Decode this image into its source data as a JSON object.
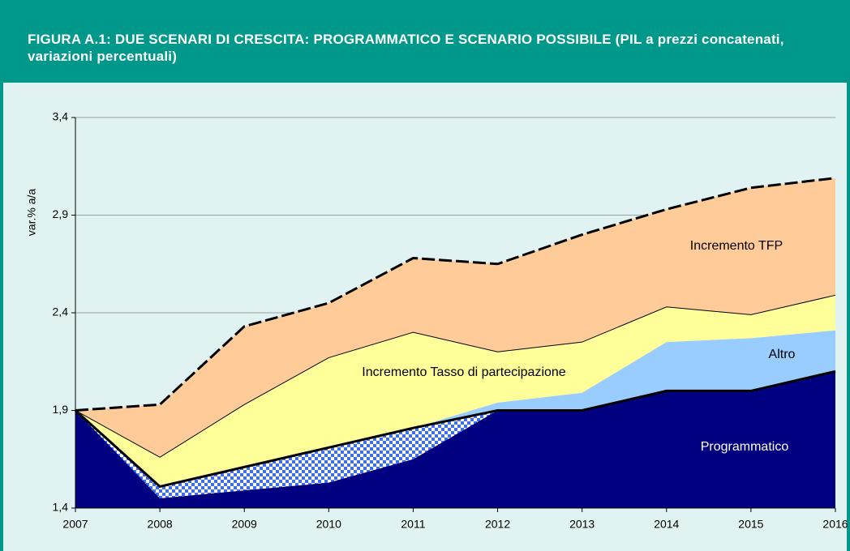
{
  "chart_data": {
    "type": "stacked_area",
    "title": "FIGURA A.1: DUE SCENARI DI CRESCITA: PROGRAMMATICO E SCENARIO POSSIBILE (PIL a prezzi concatenati, variazioni percentuali)",
    "y_label": "var.% a/a",
    "categories": [
      "2007",
      "2008",
      "2009",
      "2010",
      "2011",
      "2012",
      "2013",
      "2014",
      "2015",
      "2016"
    ],
    "ylim": [
      1.4,
      3.4
    ],
    "yticks": [
      {
        "value": 1.4,
        "label": "1,4"
      },
      {
        "value": 1.9,
        "label": "1,9"
      },
      {
        "value": 2.4,
        "label": "2,4"
      },
      {
        "value": 2.9,
        "label": "2,9"
      },
      {
        "value": 3.4,
        "label": "3,4"
      }
    ],
    "grid": true,
    "series": [
      {
        "name": "Programmatico",
        "color": "#000080",
        "values": [
          1.9,
          1.51,
          1.61,
          1.71,
          1.81,
          1.9,
          1.9,
          2.0,
          2.0,
          2.1
        ]
      },
      {
        "name": "Altro",
        "color": "#99ccff",
        "values": [
          0,
          0,
          0,
          0,
          0,
          0.04,
          0.09,
          0.25,
          0.27,
          0.21
        ]
      },
      {
        "name": "Incremento Tasso di partecipazione",
        "color": "#ffff99",
        "values": [
          0,
          0.15,
          0.32,
          0.46,
          0.49,
          0.26,
          0.26,
          0.18,
          0.12,
          0.18
        ]
      },
      {
        "name": "Incremento TFP",
        "color": "#ffcc99",
        "values": [
          0,
          0.27,
          0.4,
          0.28,
          0.38,
          0.45,
          0.55,
          0.5,
          0.65,
          0.6
        ]
      },
      {
        "color": "#3f6fe8",
        "stack": false,
        "values": [
          1.9,
          1.45,
          1.49,
          1.53,
          1.65,
          1.9,
          null,
          null,
          null,
          null
        ]
      }
    ]
  }
}
